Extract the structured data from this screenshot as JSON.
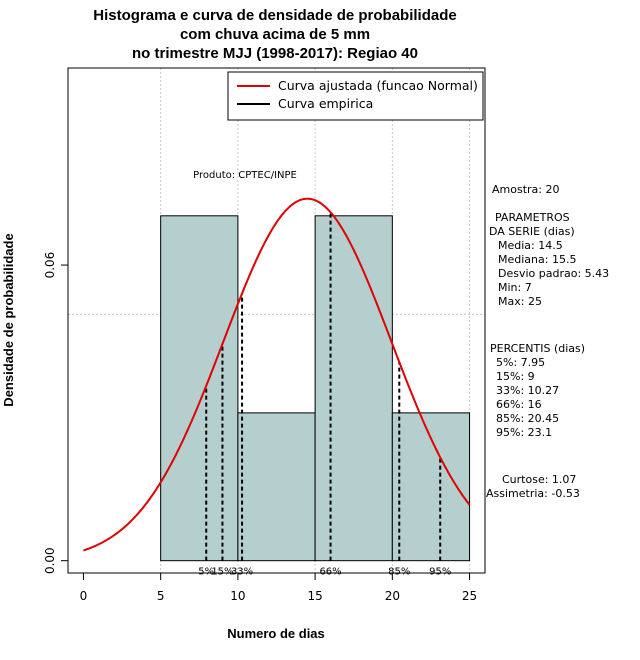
{
  "chart_data": {
    "type": "histogram",
    "title_lines": [
      "Histograma e curva de densidade de probabilidade",
      "com chuva acima de 5 mm",
      "no trimestre MJJ (1998-2017): Regiao 40"
    ],
    "xlabel": "Numero de dias",
    "ylabel": "Densidade de probabilidade",
    "xlim": [
      -1,
      26
    ],
    "ylim": [
      -0.0025,
      0.1
    ],
    "x_ticks": [
      0,
      5,
      10,
      15,
      20,
      25
    ],
    "x_tick_labels": [
      "0",
      "5",
      "10",
      "15",
      "20",
      "25"
    ],
    "y_ticks": [
      0.0,
      0.06
    ],
    "y_tick_labels": [
      "0.00",
      "0.06"
    ],
    "grid_x": [
      5,
      10,
      15,
      20,
      25
    ],
    "grid_y": [
      0.05,
      0.1
    ],
    "bins": [
      {
        "start": 5,
        "end": 10,
        "density": 0.07
      },
      {
        "start": 10,
        "end": 15,
        "density": 0.03
      },
      {
        "start": 15,
        "end": 20,
        "density": 0.07
      },
      {
        "start": 20,
        "end": 25,
        "density": 0.03
      }
    ],
    "bar_fill": "#b5cece",
    "normal_curve": {
      "mean": 14.5,
      "sd": 5.43,
      "x_from": 0,
      "x_to": 25,
      "color": "#e00000"
    },
    "percentiles": [
      {
        "label": "5%",
        "x": 7.95
      },
      {
        "label": "15%",
        "x": 9
      },
      {
        "label": "33%",
        "x": 10.27
      },
      {
        "label": "66%",
        "x": 16
      },
      {
        "label": "85%",
        "x": 20.45
      },
      {
        "label": "95%",
        "x": 23.1
      }
    ],
    "legend": {
      "position": "top-right",
      "entries": [
        {
          "label": "Curva ajustada (funcao Normal)",
          "color": "#e00000"
        },
        {
          "label": "Curva empirica",
          "color": "#000000"
        }
      ]
    },
    "annotation": "Produto: CPTEC/INPE",
    "side_panel": {
      "amostra": "Amostra: 20",
      "params_title_1": "PARAMETROS",
      "params_title_2": "DA SERIE (dias)",
      "params": [
        "Media: 14.5",
        "Mediana: 15.5",
        "Desvio padrao: 5.43",
        "Min: 7",
        "Max: 25"
      ],
      "percentis_title": "PERCENTIS (dias)",
      "percentis": [
        "5%: 7.95",
        "15%: 9",
        "33%: 10.27",
        "66%: 16",
        "85%: 20.45",
        "95%: 23.1"
      ],
      "curtose": "Curtose: 1.07",
      "assimetria": "Assimetria: -0.53"
    }
  }
}
